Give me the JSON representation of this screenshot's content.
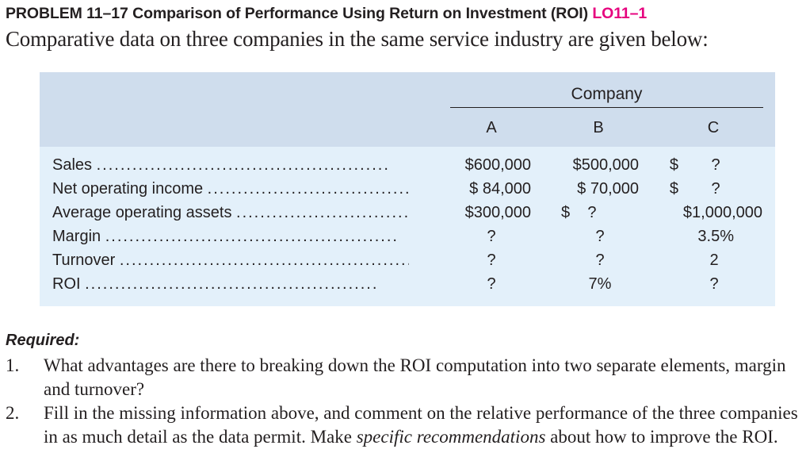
{
  "header": {
    "problem": "PROBLEM 11–17 Comparison of Performance Using Return on Investment (ROI)",
    "code": "LO11–1",
    "intro": "Comparative data on three companies in the same service industry are given below:"
  },
  "table": {
    "group_label": "Company",
    "columns": [
      "A",
      "B",
      "C"
    ],
    "rows": [
      {
        "label": "Sales",
        "a": "$600,000",
        "b": "$500,000",
        "c_sym": "$",
        "c": "?"
      },
      {
        "label": "Net operating income",
        "a": "$ 84,000",
        "b": "$ 70,000",
        "c_sym": "$",
        "c": "?"
      },
      {
        "label": "Average operating assets",
        "a": "$300,000",
        "b": "$    ?",
        "c_sym": "",
        "c": "$1,000,000"
      },
      {
        "label": "Margin",
        "a": "?",
        "b": "?",
        "c_sym": "",
        "c": "3.5%"
      },
      {
        "label": "Turnover",
        "a": "?",
        "b": "?",
        "c_sym": "",
        "c": "2"
      },
      {
        "label": "ROI",
        "a": "?",
        "b": "7%",
        "c_sym": "",
        "c": "?"
      }
    ]
  },
  "required": {
    "heading": "Required:",
    "items": [
      {
        "num": "1.",
        "text": "What advantages are there to breaking down the ROI computation into two separate elements, margin and turnover?"
      },
      {
        "num": "2.",
        "text_before": "Fill in the missing information above, and comment on the relative performance of the three companies in as much detail as the data permit. Make ",
        "text_em": "specific recommendations",
        "text_after": " about how to improve the ROI."
      }
    ]
  }
}
